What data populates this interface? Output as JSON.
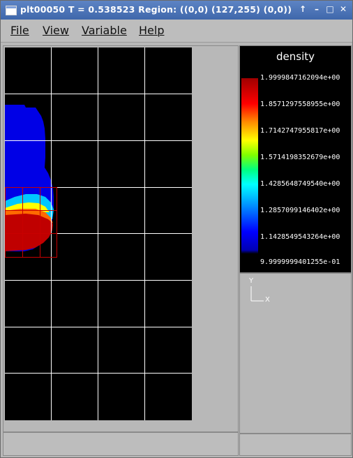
{
  "window": {
    "title": "plt00050   T = 0.538523   Region:  ((0,0) (127,255) (0,0))",
    "controls": [
      "↑",
      "–",
      "□",
      "✕"
    ]
  },
  "menu": [
    {
      "label": "File"
    },
    {
      "label": "View"
    },
    {
      "label": "Variable"
    },
    {
      "label": "Help"
    }
  ],
  "legend": {
    "title": "density",
    "ticks": [
      "1.9999847162094e+00",
      "1.8571297558955e+00",
      "1.7142747955817e+00",
      "1.5714198352679e+00",
      "1.4285648749540e+00",
      "1.2857099146402e+00",
      "1.1428549543264e+00",
      "9.9999999401255e-01"
    ]
  },
  "axes": {
    "y_label": "Y",
    "x_label": "X"
  },
  "colors": {
    "titlebar": "#4a71b5",
    "plot_background": "#000000",
    "grid": "#ffffff",
    "refined_grid": "#ff0000"
  }
}
